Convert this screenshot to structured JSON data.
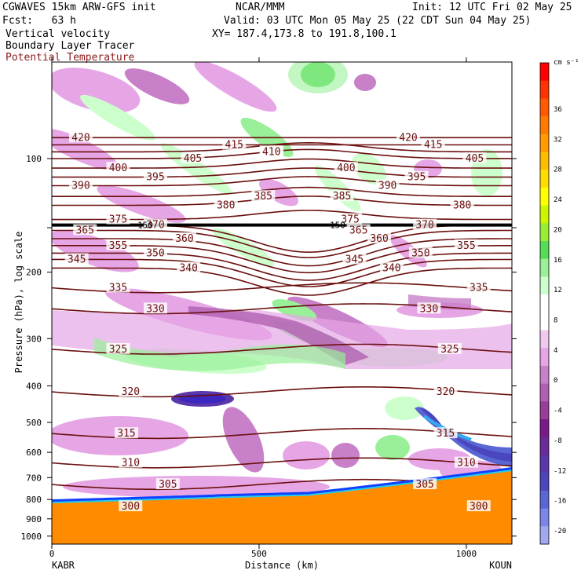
{
  "header": {
    "model": "CGWAVES 15km ARW-GFS init",
    "org": "NCAR/MMM",
    "init": "Init: 12 UTC Fri 02 May 25",
    "fcst": "Fcst:   63 h",
    "valid": "Valid: 03 UTC Mon 05 May 25 (22 CDT Sun 04 May 25)",
    "fields": [
      "Vertical velocity",
      "Boundary Layer Tracer",
      "Potential Temperature"
    ],
    "xy": "XY= 187.4,173.8 to 191.8,100.1"
  },
  "colors": {
    "theta_contour": "#6b0f0f",
    "terrain": "#ff8c00",
    "header_red": "#8b1a1a"
  },
  "chart_data": {
    "type": "heatmap",
    "title": "Vertical velocity / Boundary Layer Tracer / Potential Temperature cross-section",
    "ylabel": "Pressure (hPa), log scale",
    "xlabel": "Distance (km)",
    "xlim": [
      0,
      1110
    ],
    "x_ticks": [
      0,
      500,
      1000
    ],
    "y_ticks": [
      100,
      200,
      300,
      400,
      500,
      600,
      700,
      800,
      900,
      1000
    ],
    "x_endpoints": [
      "KABR",
      "KOUN"
    ],
    "colorbar": {
      "units": "cm s⁻¹",
      "tick_labels": [
        "36",
        "32",
        "28",
        "24",
        "20",
        "16",
        "12",
        "8",
        "4",
        "0",
        "-4",
        "-8",
        "-12",
        "-16",
        "-20"
      ],
      "colors": [
        "#ff0000",
        "#ff3300",
        "#ff5a00",
        "#ff7a00",
        "#ff9a00",
        "#ffbb00",
        "#ffdd00",
        "#ffff00",
        "#ccf500",
        "#99ee33",
        "#55dd55",
        "#99f099",
        "#ccffcc",
        "#ffffff",
        "#ffffff",
        "#f0c8f0",
        "#e6a6e6",
        "#c880c8",
        "#b060b0",
        "#9a3c9a",
        "#7a1a8a",
        "#6a2a9a",
        "#5a38ac",
        "#4c46be",
        "#5a66d4",
        "#7a86e8",
        "#a0a8f0"
      ]
    },
    "theta_levels": [
      {
        "theta": 300,
        "p": 835,
        "labels_km": [
          190,
          1030
        ]
      },
      {
        "theta": 305,
        "p": 730,
        "labels_km": [
          280,
          900
        ]
      },
      {
        "theta": 310,
        "p": 640,
        "labels_km": [
          190,
          1000
        ]
      },
      {
        "theta": 315,
        "p": 535,
        "labels_km": [
          180,
          950
        ]
      },
      {
        "theta": 320,
        "p": 415,
        "labels_km": [
          190,
          950
        ]
      },
      {
        "theta": 325,
        "p": 320,
        "labels_km": [
          160,
          960
        ]
      },
      {
        "theta": 330,
        "p": 250,
        "labels_km": [
          250,
          910
        ]
      },
      {
        "theta": 335,
        "p": 220,
        "labels_km": [
          160,
          1030
        ]
      },
      {
        "theta": 340,
        "p": 195,
        "labels_km": [
          330,
          820
        ]
      },
      {
        "theta": 345,
        "p": 185,
        "labels_km": [
          60,
          730
        ]
      },
      {
        "theta": 350,
        "p": 178,
        "labels_km": [
          250,
          890
        ]
      },
      {
        "theta": 355,
        "p": 170,
        "labels_km": [
          160,
          1000
        ]
      },
      {
        "theta": 360,
        "p": 163,
        "labels_km": [
          320,
          790
        ]
      },
      {
        "theta": 365,
        "p": 155,
        "labels_km": [
          80,
          740
        ]
      },
      {
        "theta": 370,
        "p": 150,
        "labels_km": [
          250,
          900
        ]
      },
      {
        "theta": 375,
        "p": 145,
        "labels_km": [
          160,
          720
        ]
      },
      {
        "theta": 380,
        "p": 133,
        "labels_km": [
          420,
          990
        ]
      },
      {
        "theta": 385,
        "p": 126,
        "labels_km": [
          510,
          700
        ]
      },
      {
        "theta": 390,
        "p": 118,
        "labels_km": [
          70,
          810
        ]
      },
      {
        "theta": 395,
        "p": 112,
        "labels_km": [
          250,
          880
        ]
      },
      {
        "theta": 400,
        "p": 106,
        "labels_km": [
          160,
          710
        ]
      },
      {
        "theta": 405,
        "p": 100,
        "labels_km": [
          340,
          1020
        ]
      },
      {
        "theta": 410,
        "p": 96,
        "labels_km": [
          530,
          530
        ]
      },
      {
        "theta": 415,
        "p": 92,
        "labels_km": [
          440,
          920
        ]
      },
      {
        "theta": 420,
        "p": 88,
        "labels_km": [
          70,
          860
        ]
      }
    ],
    "tropopause_label": "150"
  }
}
